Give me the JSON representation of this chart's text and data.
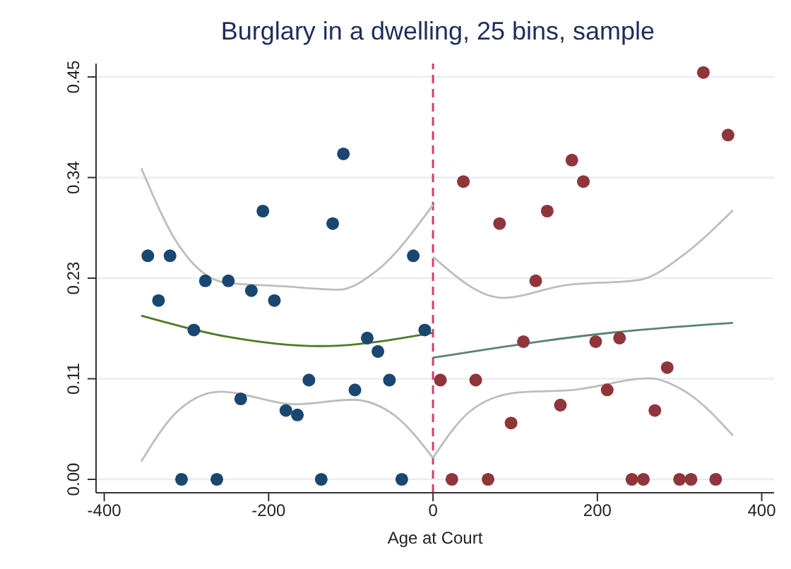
{
  "chart_data": {
    "type": "scatter",
    "title": "Burglary in a dwelling, 25 bins, sample",
    "xlabel": "Age at Court",
    "xlim": [
      -410,
      415
    ],
    "xticks": [
      -400,
      -200,
      0,
      200,
      400
    ],
    "ylim": [
      -0.015,
      0.465
    ],
    "yticks": [
      {
        "value": 0,
        "label": "0.00"
      },
      {
        "value": 0.1125,
        "label": "0.11"
      },
      {
        "value": 0.225,
        "label": "0.23"
      },
      {
        "value": 0.3375,
        "label": "0.34"
      },
      {
        "value": 0.45,
        "label": "0.45"
      }
    ],
    "grid": "y",
    "ref_lines": [
      {
        "axis": "x",
        "value": 0,
        "label": null,
        "color": "#d0406e",
        "line_style": "dashed"
      }
    ],
    "series": [
      {
        "marker": "circle",
        "color": "#1a476f",
        "x": [
          -347,
          -334,
          -320,
          -306,
          -291,
          -277,
          -263,
          -249,
          -234,
          -221,
          -207,
          -193,
          -179,
          -165,
          -151,
          -136,
          -122,
          -109,
          -95,
          -80,
          -67,
          -53,
          -38,
          -24,
          -10
        ],
        "values": [
          0.25,
          0.2,
          0.25,
          0,
          0.167,
          0.222,
          0,
          0.222,
          0.09,
          0.211,
          0.3,
          0.2,
          0.077,
          0.072,
          0.111,
          0,
          0.286,
          0.364,
          0.1,
          0.158,
          0.143,
          0.111,
          0,
          0.25,
          0.167
        ]
      },
      {
        "marker": "circle",
        "color": "#90353b",
        "x": [
          9,
          23,
          37,
          52,
          67,
          81,
          95,
          110,
          125,
          139,
          155,
          169,
          183,
          198,
          212,
          227,
          242,
          256,
          270,
          285,
          300,
          314,
          329,
          344,
          359
        ],
        "values": [
          0.111,
          0,
          0.333,
          0.111,
          0,
          0.286,
          0.063,
          0.154,
          0.222,
          0.3,
          0.083,
          0.357,
          0.333,
          0.154,
          0.1,
          0.158,
          0,
          0,
          0.077,
          0.125,
          0,
          0,
          0.455,
          0,
          0.385
        ]
      },
      {
        "type": "line",
        "color": "#4f7a28",
        "x": [
          -355,
          -253,
          -138,
          0
        ],
        "values": [
          0.183,
          0.16,
          0.149,
          0.164
        ]
      },
      {
        "type": "line",
        "color": "#5a8275",
        "x": [
          0,
          217,
          365
        ],
        "values": [
          0.136,
          0.164,
          0.175
        ]
      },
      {
        "type": "line",
        "color": "#bdbdbd",
        "x": [
          -355,
          -311,
          -253,
          -184,
          -115,
          -69,
          0
        ],
        "values": [
          0.348,
          0.264,
          0.22,
          0.216,
          0.212,
          0.233,
          0.307
        ]
      },
      {
        "type": "line",
        "color": "#bdbdbd",
        "x": [
          -355,
          -311,
          -259,
          -167,
          -98,
          -46,
          0
        ],
        "values": [
          0.02,
          0.076,
          0.098,
          0.084,
          0.089,
          0.071,
          0.024
        ]
      },
      {
        "type": "line",
        "color": "#bdbdbd",
        "x": [
          0,
          85,
          160,
          251,
          309,
          365
        ],
        "values": [
          0.249,
          0.203,
          0.217,
          0.223,
          0.254,
          0.301
        ]
      },
      {
        "type": "line",
        "color": "#bdbdbd",
        "x": [
          0,
          45,
          102,
          171,
          263,
          309,
          365
        ],
        "values": [
          0.024,
          0.076,
          0.097,
          0.1,
          0.113,
          0.097,
          0.049
        ]
      }
    ]
  }
}
